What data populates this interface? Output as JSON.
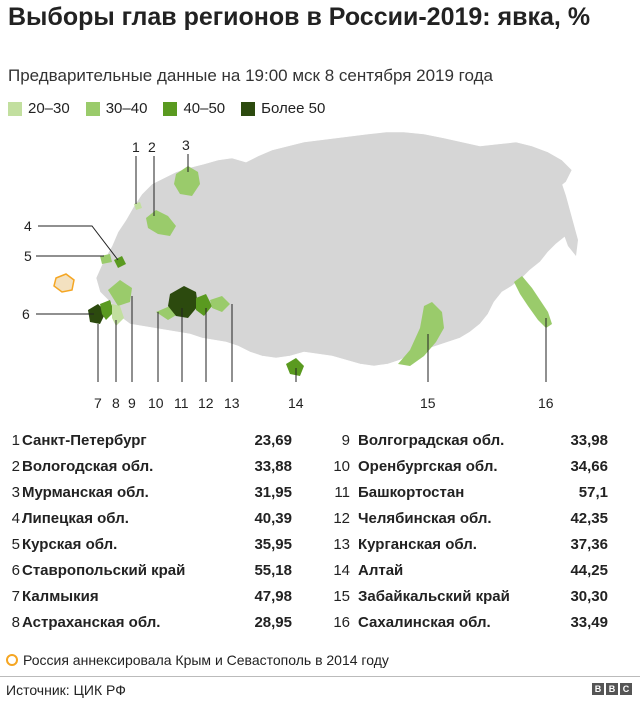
{
  "title": "Выборы глав регионов в России-2019: явка, %",
  "subtitle": "Предварительные данные на 19:00 мск 8 сентября 2019 года",
  "legend": [
    {
      "label": "20–30",
      "color": "#c2df9f"
    },
    {
      "label": "30–40",
      "color": "#9acb6b"
    },
    {
      "label": "40–50",
      "color": "#5a9a20"
    },
    {
      "label": "Более 50",
      "color": "#2c4a0e"
    }
  ],
  "map": {
    "base_color": "#d6d6d6",
    "callouts": [
      "1",
      "2",
      "3",
      "4",
      "5",
      "6",
      "7",
      "8",
      "9",
      "10",
      "11",
      "12",
      "13",
      "14",
      "15",
      "16"
    ]
  },
  "regions": [
    {
      "num": "1",
      "name": "Санкт-Петербург",
      "value": "23,69"
    },
    {
      "num": "2",
      "name": "Вологодская обл.",
      "value": "33,88"
    },
    {
      "num": "3",
      "name": "Мурманская обл.",
      "value": "31,95"
    },
    {
      "num": "4",
      "name": "Липецкая обл.",
      "value": "40,39"
    },
    {
      "num": "5",
      "name": "Курская обл.",
      "value": "35,95"
    },
    {
      "num": "6",
      "name": "Ставропольский край",
      "value": "55,18"
    },
    {
      "num": "7",
      "name": "Калмыкия",
      "value": "47,98"
    },
    {
      "num": "8",
      "name": "Астраханская обл.",
      "value": "28,95"
    },
    {
      "num": "9",
      "name": "Волгоградская обл.",
      "value": "33,98"
    },
    {
      "num": "10",
      "name": "Оренбургская обл.",
      "value": "34,66"
    },
    {
      "num": "11",
      "name": "Башкортостан",
      "value": "57,1"
    },
    {
      "num": "12",
      "name": "Челябинская обл.",
      "value": "42,35"
    },
    {
      "num": "13",
      "name": "Курганская обл.",
      "value": "37,36"
    },
    {
      "num": "14",
      "name": "Алтай",
      "value": "44,25"
    },
    {
      "num": "15",
      "name": "Забайкальский край",
      "value": "30,30"
    },
    {
      "num": "16",
      "name": "Сахалинская обл.",
      "value": "33,49"
    }
  ],
  "note": "Россия аннексировала Крым и Севастополь в 2014 году",
  "note_color": "#f5a623",
  "source": "Источник: ЦИК РФ",
  "logo": "BBC"
}
